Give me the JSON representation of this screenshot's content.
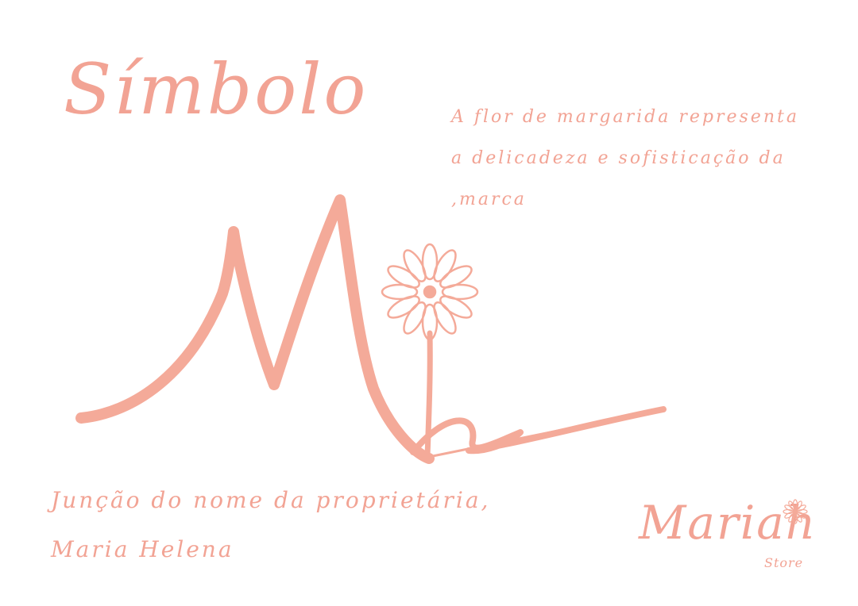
{
  "title": "Símbolo",
  "description": {
    "line1": "A flor de margarida representa",
    "line2": "a delicadeza e sofisticação da",
    "line3": ",marca"
  },
  "caption": {
    "line1": "Junção do nome da proprietária,",
    "line2": "Maria Helena"
  },
  "logo": {
    "name": "Mariah",
    "sub": "Store"
  },
  "colors": {
    "accent": "#f2a394",
    "symbol": "#f4aa99",
    "background": "#ffffff"
  },
  "icons": {
    "symbol": "mh-monogram-with-daisy",
    "logo_flower": "daisy-icon"
  }
}
